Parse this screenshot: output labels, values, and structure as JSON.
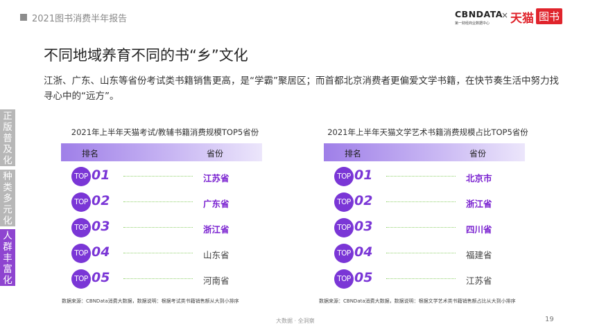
{
  "header": {
    "report_title": "2021图书消费半年报告",
    "logo_cbn": "CBNDATA",
    "logo_cbn_sub": "第一财经商业数据中心",
    "logo_x": "×",
    "logo_tmall": "天猫",
    "logo_tushu": "图书"
  },
  "page": {
    "title": "不同地域养育不同的书“乡”文化",
    "description": "江浙、广东、山东等省份考试类书籍销售更高，是“学霸”聚居区；而首都北京消费者更偏爱文学书籍，在快节奏生活中努力找寻心中的“远方”。"
  },
  "side_tabs": [
    {
      "label": "正版普及化",
      "active": false
    },
    {
      "label": "种类多元化",
      "active": false
    },
    {
      "label": "人群丰富化",
      "active": true
    }
  ],
  "left_table": {
    "title": "2021年上半年天猫考试/教辅书籍消费规模TOP5省份",
    "col_rank": "排名",
    "col_province": "省份",
    "rows": [
      {
        "badge": "TOP",
        "num": "01",
        "province": "江苏省"
      },
      {
        "badge": "TOP",
        "num": "02",
        "province": "广东省"
      },
      {
        "badge": "TOP",
        "num": "03",
        "province": "浙江省"
      },
      {
        "badge": "TOP",
        "num": "04",
        "province": "山东省"
      },
      {
        "badge": "TOP",
        "num": "05",
        "province": "河南省"
      }
    ],
    "source": "数据来源：CBNData消费大数据，数据说明：根据考试类书籍销售额从大到小排序"
  },
  "right_table": {
    "title": "2021年上半年天猫文学艺术书籍消费规模占比TOP5省份",
    "col_rank": "排名",
    "col_province": "省份",
    "rows": [
      {
        "badge": "TOP",
        "num": "01",
        "province": "北京市"
      },
      {
        "badge": "TOP",
        "num": "02",
        "province": "浙江省"
      },
      {
        "badge": "TOP",
        "num": "03",
        "province": "四川省"
      },
      {
        "badge": "TOP",
        "num": "04",
        "province": "福建省"
      },
      {
        "badge": "TOP",
        "num": "05",
        "province": "江苏省"
      }
    ],
    "source": "数据来源：CBNData消费大数据，数据说明：根据文学艺术类书籍销售额占比从大到小排序"
  },
  "footer": {
    "tagline": "大数据 · 全洞察",
    "page_number": "19"
  },
  "colors": {
    "accent_purple": "#7a36d6",
    "tmall_red": "#e0242c",
    "dotted_green": "#8fd16a"
  }
}
